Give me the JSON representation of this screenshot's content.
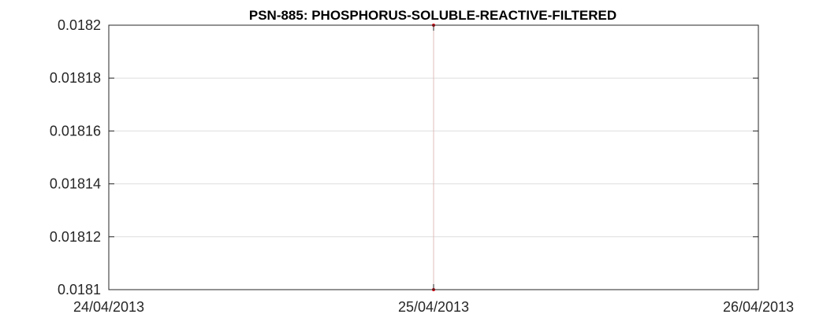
{
  "chart_data": {
    "type": "line",
    "title": "PSN-885: PHOSPHORUS-SOLUBLE-REACTIVE-FILTERED",
    "xlabel": "",
    "ylabel": "",
    "x_ticks": [
      "24/04/2013",
      "25/04/2013",
      "26/04/2013"
    ],
    "xlim": [
      "2013-04-24",
      "2013-04-26"
    ],
    "y_ticks": [
      0.0181,
      0.01812,
      0.01814,
      0.01816,
      0.01818,
      0.0182
    ],
    "ylim": [
      0.0181,
      0.0182
    ],
    "grid": true,
    "series": [
      {
        "color": "#e6000b",
        "points": [
          {
            "x": "2013-04-25",
            "y": 0.0182
          },
          {
            "x": "2013-04-25",
            "y": 0.0181
          }
        ]
      }
    ]
  }
}
